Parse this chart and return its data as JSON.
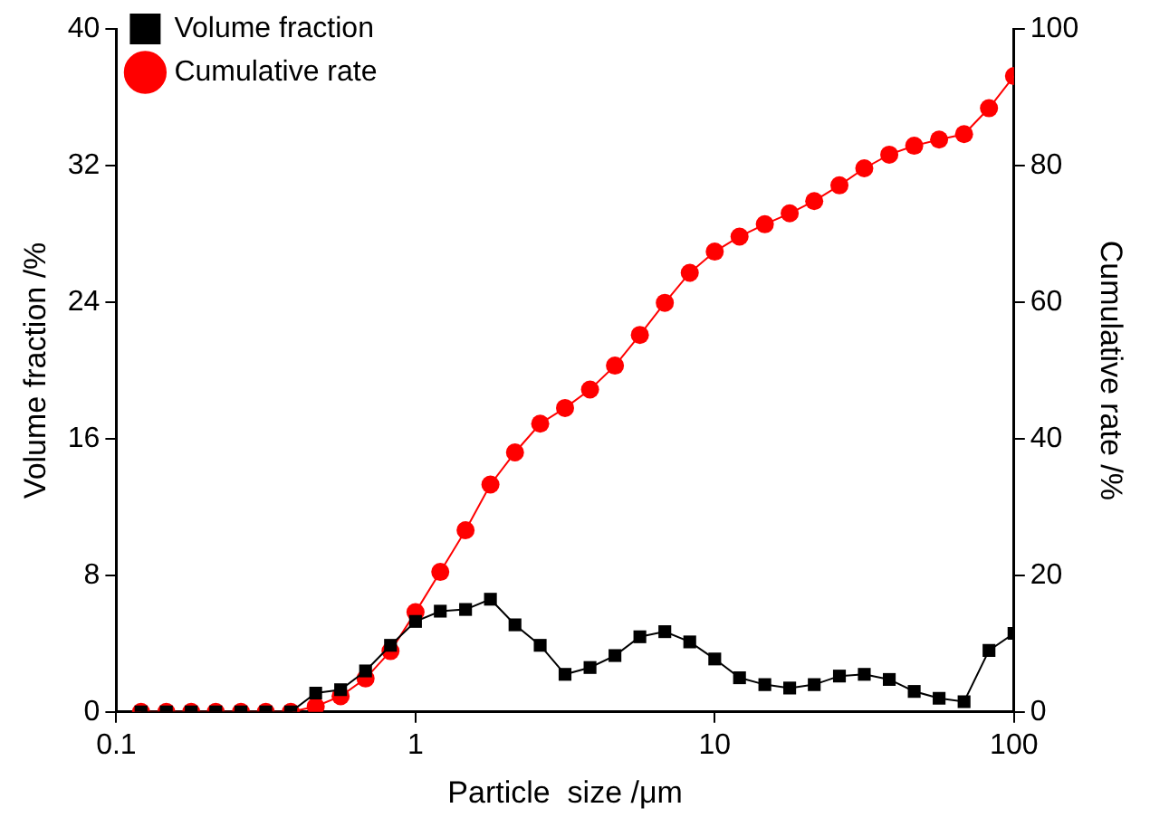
{
  "chart_data": {
    "type": "line",
    "xlabel": "Particle  size /μm",
    "ylabel": "Volume fraction /%",
    "y2label": "Cumulative rate /%",
    "x": [
      0.121,
      0.147,
      0.178,
      0.215,
      0.261,
      0.316,
      0.383,
      0.464,
      0.562,
      0.681,
      0.825,
      1,
      1.21,
      1.47,
      1.78,
      2.15,
      2.61,
      3.16,
      3.83,
      4.64,
      5.62,
      6.81,
      8.25,
      10,
      12.1,
      14.7,
      17.8,
      21.5,
      26.1,
      31.6,
      38.3,
      46.4,
      56.2,
      68.1,
      82.5,
      100
    ],
    "series": [
      {
        "name": "Volume fraction",
        "color": "#000000",
        "marker": "square",
        "values": [
          0,
          0,
          0,
          0,
          0,
          0,
          0,
          1.1,
          1.3,
          2.4,
          3.9,
          5.3,
          5.9,
          6.0,
          6.6,
          5.1,
          3.9,
          2.2,
          2.6,
          3.3,
          4.4,
          4.7,
          4.1,
          3.1,
          2.0,
          1.6,
          1.4,
          1.6,
          2.1,
          2.2,
          1.9,
          1.2,
          0.8,
          0.6,
          3.6,
          4.6
        ]
      },
      {
        "name": "Cumulative rate",
        "color": "#ff0000",
        "marker": "circle",
        "axis": "y2",
        "values": [
          0,
          0,
          0,
          0,
          0,
          0,
          0,
          0.8,
          2.3,
          4.9,
          8.9,
          14.6,
          20.5,
          26.6,
          33.3,
          38.0,
          42.2,
          44.5,
          47.2,
          50.7,
          55.2,
          59.9,
          64.3,
          67.4,
          69.6,
          71.4,
          73.0,
          74.8,
          77.1,
          79.6,
          81.6,
          82.9,
          83.8,
          84.6,
          88.4,
          93.1
        ]
      }
    ],
    "log": "x",
    "xlim": [
      0.1,
      100
    ],
    "xticks": [
      0.1,
      1,
      10,
      100
    ],
    "ylim": [
      0,
      40
    ],
    "yticks": [
      0,
      8,
      16,
      24,
      32,
      40
    ],
    "y2lim": [
      0,
      100
    ],
    "y2ticks": [
      0,
      20,
      40,
      60,
      80,
      100
    ],
    "grid": false,
    "legend": "top left",
    "line_style": "solid"
  }
}
